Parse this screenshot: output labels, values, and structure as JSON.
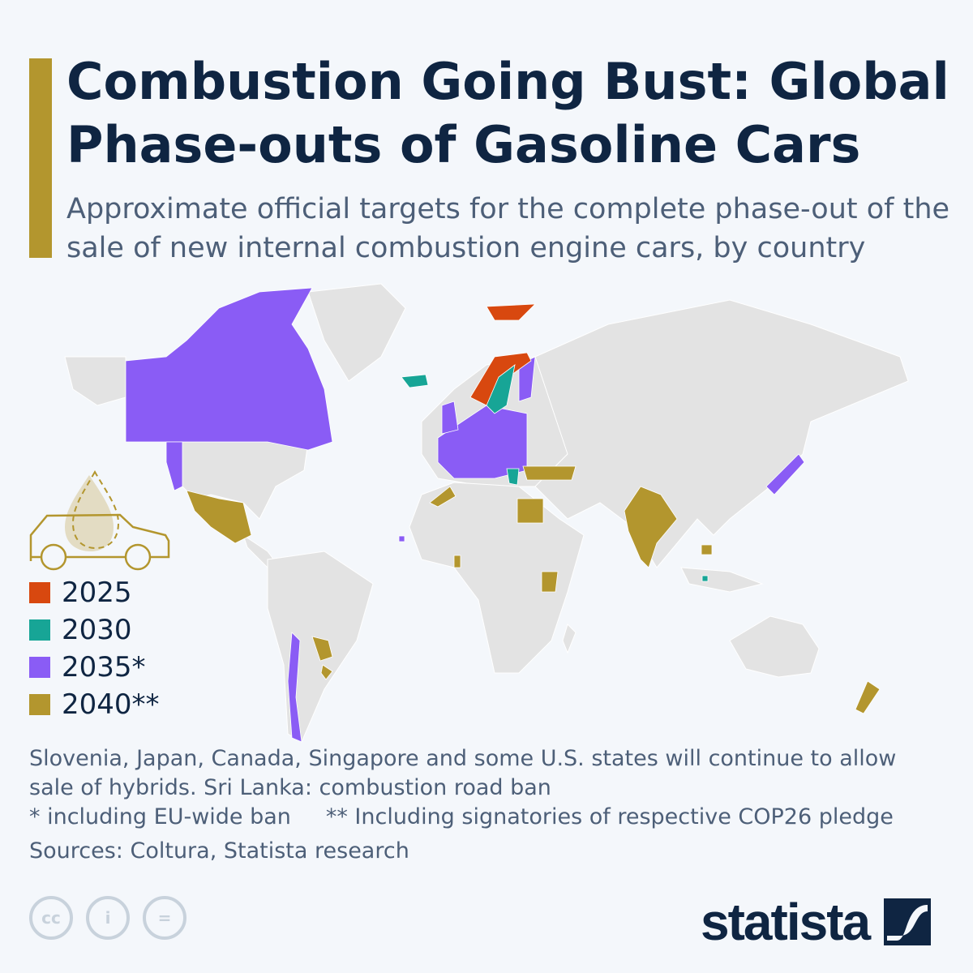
{
  "header": {
    "title": "Combustion Going Bust: Global Phase-outs of Gasoline Cars",
    "subtitle": "Approximate official targets for the complete phase-out of the sale of new internal combustion engine cars, by country"
  },
  "colors": {
    "accent": "#b3962e",
    "land": "#e3e3e3",
    "2025": "#d8480f",
    "2030": "#17a596",
    "2035": "#8a5cf5",
    "2040": "#b3962e"
  },
  "legend": [
    {
      "label": "2025",
      "color": "#d8480f"
    },
    {
      "label": "2030",
      "color": "#17a596"
    },
    {
      "label": "2035*",
      "color": "#8a5cf5"
    },
    {
      "label": "2040**",
      "color": "#b3962e"
    }
  ],
  "notes": {
    "line1": "Slovenia, Japan, Canada, Singapore and some U.S. states will continue to allow",
    "line2": "sale of hybrids. Sri Lanka: combustion road ban",
    "line3": "* including EU-wide ban     ** Including signatories of respective COP26 pledge",
    "source": "Sources: Coltura, Statista research"
  },
  "footer": {
    "license_icons": [
      "cc-icon",
      "attribution-icon",
      "no-derivatives-icon"
    ],
    "brand": "statista"
  }
}
